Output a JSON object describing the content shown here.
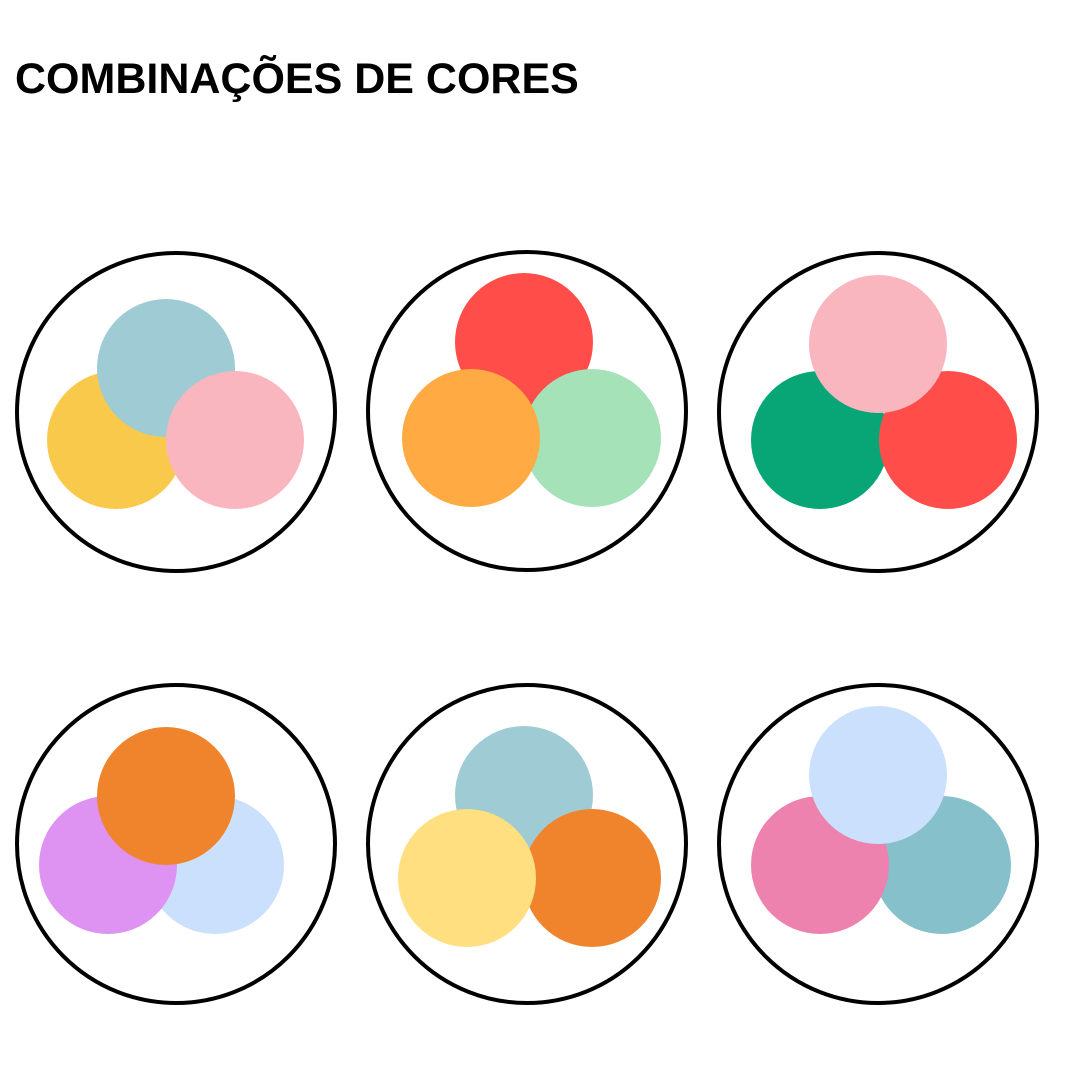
{
  "title": "COMBINAÇÕES DE CORES",
  "combinations": [
    {
      "colors": [
        "#f8c94b",
        "#9fcbd4",
        "#f9b6bf"
      ]
    },
    {
      "colors": [
        "#ff4d4a",
        "#a5e2b8",
        "#ffaa43"
      ]
    },
    {
      "colors": [
        "#08a677",
        "#ff4d4a",
        "#f9b6bf"
      ]
    },
    {
      "colors": [
        "#cbe0fd",
        "#de92f2",
        "#f0842c"
      ]
    },
    {
      "colors": [
        "#9fcbd4",
        "#f0842c",
        "#ffdf80"
      ]
    },
    {
      "colors": [
        "#86c0cb",
        "#ee82af",
        "#cbe0fd"
      ]
    }
  ]
}
